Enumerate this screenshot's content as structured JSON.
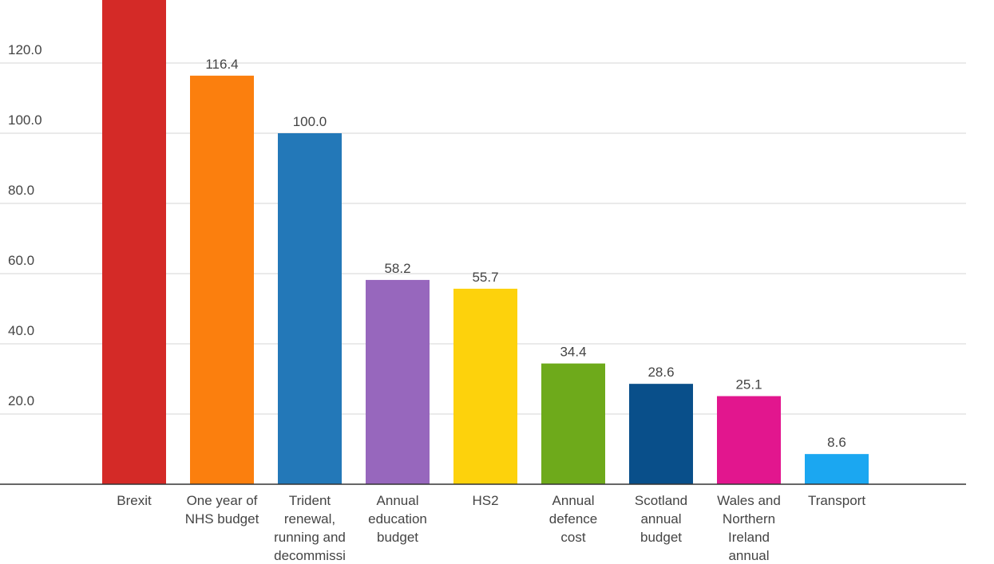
{
  "chart_data": {
    "type": "bar",
    "title": "",
    "xlabel": "",
    "ylabel": "",
    "ylim": [
      0,
      138
    ],
    "grid": true,
    "yticks": [
      "20.0",
      "40.0",
      "60.0",
      "80.0",
      "100.0",
      "120.0"
    ],
    "ytick_values": [
      20,
      40,
      60,
      80,
      100,
      120
    ],
    "categories": [
      {
        "lines": [
          "Brexit"
        ]
      },
      {
        "lines": [
          "One year of",
          "NHS budget"
        ]
      },
      {
        "lines": [
          "Trident",
          "renewal,",
          "running and",
          "decommissi"
        ]
      },
      {
        "lines": [
          "Annual",
          "education",
          "budget"
        ]
      },
      {
        "lines": [
          "HS2"
        ]
      },
      {
        "lines": [
          "Annual",
          "defence",
          "cost"
        ]
      },
      {
        "lines": [
          "Scotland",
          "annual",
          "budget"
        ]
      },
      {
        "lines": [
          "Wales and",
          "Northern",
          "Ireland",
          "annual"
        ]
      },
      {
        "lines": [
          "Transport"
        ]
      }
    ],
    "values": [
      null,
      116.4,
      100.0,
      58.2,
      55.7,
      34.4,
      28.6,
      25.1,
      8.6
    ],
    "value_labels": [
      "",
      "116.4",
      "100.0",
      "58.2",
      "55.7",
      "34.4",
      "28.6",
      "25.1",
      "8.6"
    ],
    "note_brexit": "",
    "colors": [
      "#d42a27",
      "#fb7f0e",
      "#2378b8",
      "#9767bd",
      "#fdd20c",
      "#6eaa1b",
      "#094f8a",
      "#e2168e",
      "#1ba7f1"
    ]
  }
}
